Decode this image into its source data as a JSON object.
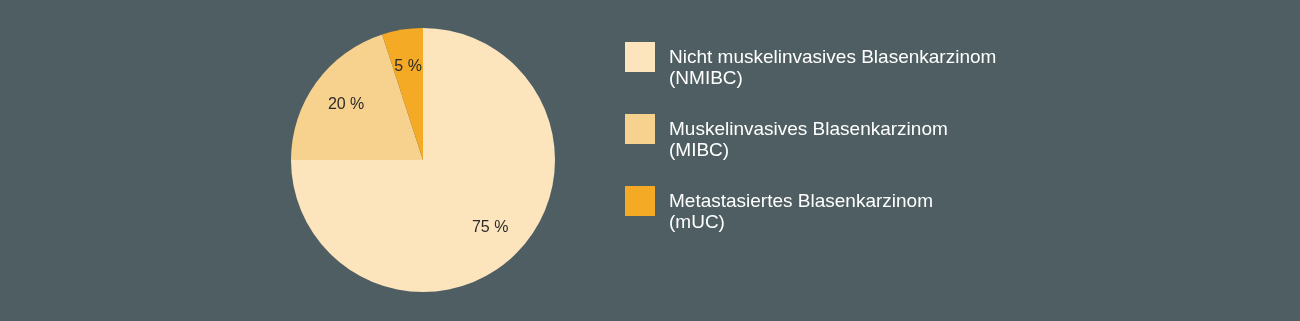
{
  "chart_data": {
    "type": "pie",
    "categories": [
      "Nicht muskelinvasives Blasenkarzinom\n(NMIBC)",
      "Muskelinvasives Blasenkarzinom\n(MIBC)",
      "Metastasiertes Blasenkarzinom\n(mUC)"
    ],
    "values": [
      75,
      20,
      5
    ],
    "colors": [
      "#fce4bd",
      "#f7d18e",
      "#f4aa24"
    ],
    "value_labels": [
      "75 %",
      "20 %",
      "5 %"
    ],
    "legend": "right"
  }
}
